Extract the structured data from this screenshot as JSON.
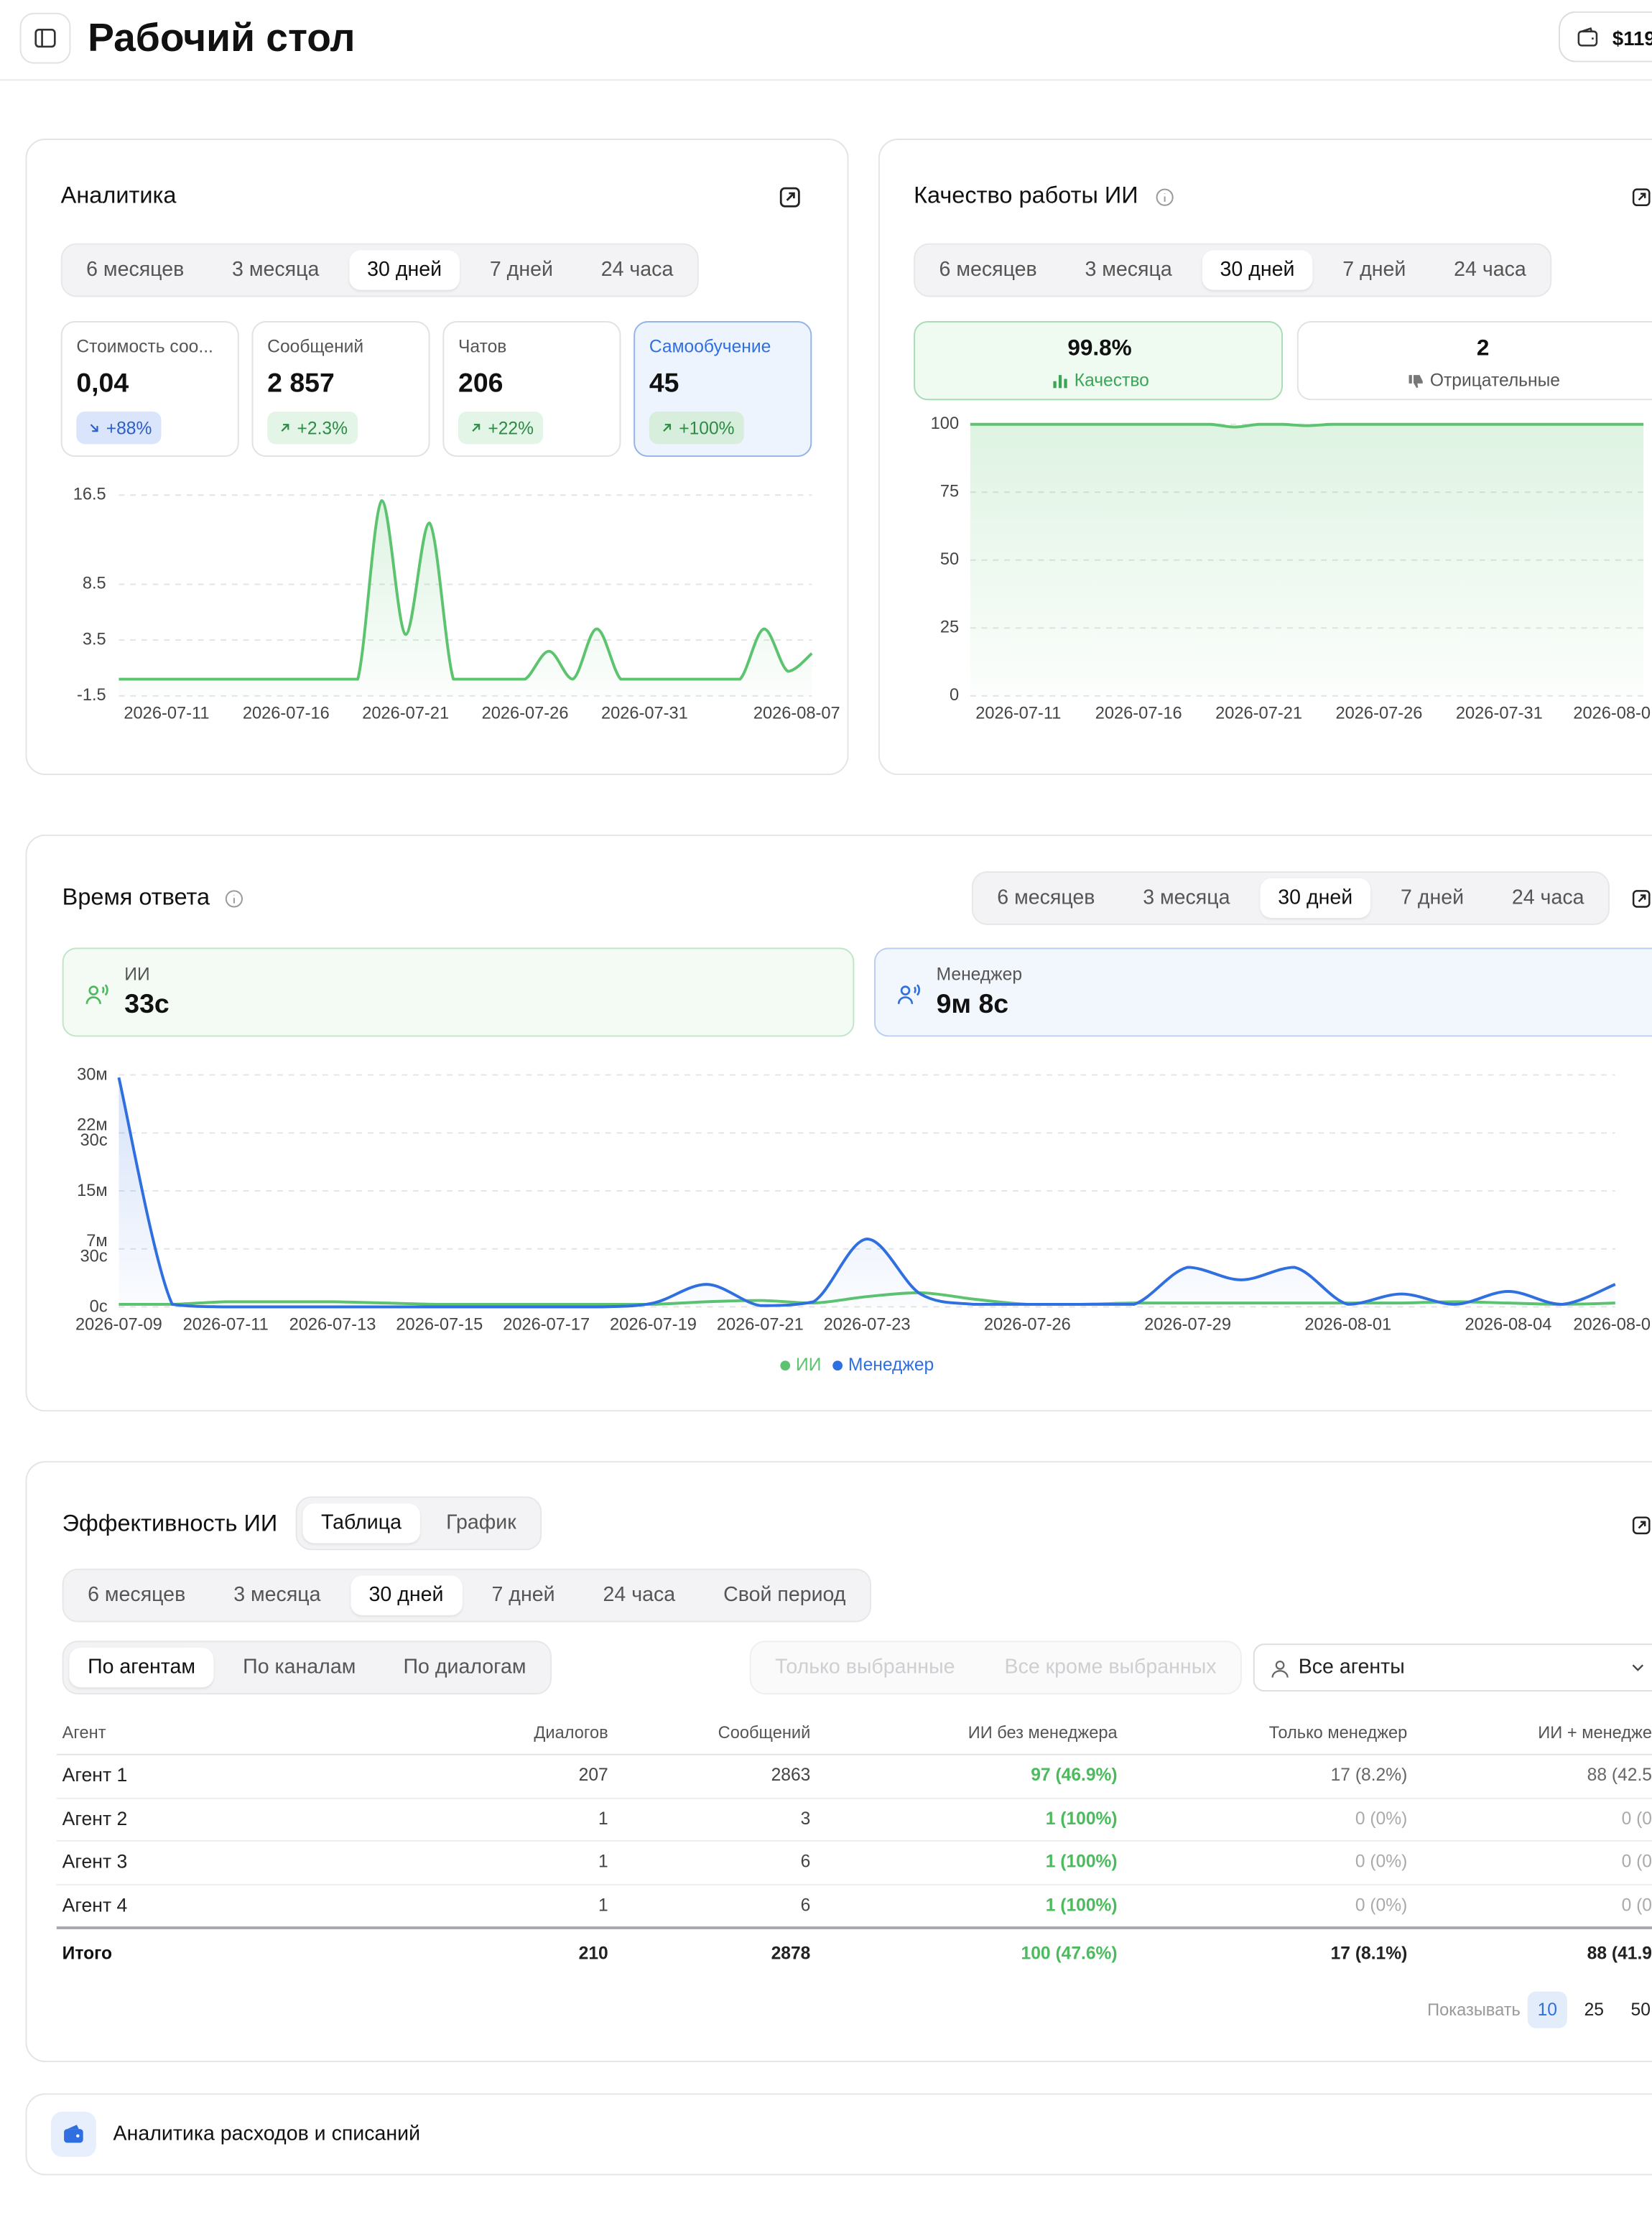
{
  "header": {
    "title": "Рабочий стол",
    "balance": "$119"
  },
  "analytics": {
    "title": "Аналитика",
    "periods": [
      "6 месяцев",
      "3 месяца",
      "30 дней",
      "7 дней",
      "24 часа"
    ],
    "active_period": 2,
    "selected_card": 3,
    "cards": [
      {
        "label": "Стоимость соо...",
        "value": "0,04",
        "change": "+88%",
        "trend": "down"
      },
      {
        "label": "Сообщений",
        "value": "2 857",
        "change": "+2.3%",
        "trend": "up"
      },
      {
        "label": "Чатов",
        "value": "206",
        "change": "+22%",
        "trend": "up"
      },
      {
        "label": "Самообучение",
        "value": "45",
        "change": "+100%",
        "trend": "up"
      }
    ],
    "chart": {
      "type": "line",
      "x": [
        "2026-07-09",
        "2026-07-10",
        "2026-07-11",
        "2026-07-12",
        "2026-07-13",
        "2026-07-14",
        "2026-07-15",
        "2026-07-16",
        "2026-07-17",
        "2026-07-18",
        "2026-07-19",
        "2026-07-20",
        "2026-07-21",
        "2026-07-22",
        "2026-07-23",
        "2026-07-24",
        "2026-07-25",
        "2026-07-26",
        "2026-07-27",
        "2026-07-28",
        "2026-07-29",
        "2026-07-30",
        "2026-07-31",
        "2026-08-01",
        "2026-08-02",
        "2026-08-03",
        "2026-08-04",
        "2026-08-05",
        "2026-08-06",
        "2026-08-07"
      ],
      "series": [
        {
          "color": "#5cc46f",
          "area": true,
          "values": [
            0,
            0,
            0,
            0,
            0,
            0,
            0,
            0,
            0,
            0,
            0,
            16,
            4,
            14,
            0,
            0,
            0,
            0,
            2.5,
            0,
            4.5,
            0,
            0,
            0,
            0,
            0,
            0,
            4.5,
            0.7,
            2.3
          ]
        }
      ],
      "xlim": [
        "2026-07-09",
        "2026-08-07"
      ],
      "xticks": [
        "2026-07-11",
        "2026-07-16",
        "2026-07-21",
        "2026-07-26",
        "2026-07-31",
        "2026-08-07"
      ],
      "ylim": [
        -1.5,
        16.5
      ],
      "yticks": [
        16.5,
        8.5,
        3.5,
        -1.5
      ],
      "grid": true
    }
  },
  "quality": {
    "title": "Качество работы ИИ",
    "periods": [
      "6 месяцев",
      "3 месяца",
      "30 дней",
      "7 дней",
      "24 часа"
    ],
    "active_period": 2,
    "cards": [
      {
        "value": "99.8%",
        "label": "Качество",
        "tone": "positive"
      },
      {
        "value": "2",
        "label": "Отрицательные",
        "tone": "neutral"
      }
    ],
    "chart": {
      "type": "line",
      "x": [
        "2026-07-09",
        "2026-07-10",
        "2026-07-11",
        "2026-07-12",
        "2026-07-13",
        "2026-07-14",
        "2026-07-15",
        "2026-07-16",
        "2026-07-17",
        "2026-07-18",
        "2026-07-19",
        "2026-07-20",
        "2026-07-21",
        "2026-07-22",
        "2026-07-23",
        "2026-07-24",
        "2026-07-25",
        "2026-07-26",
        "2026-07-27",
        "2026-07-28",
        "2026-07-29",
        "2026-07-30",
        "2026-07-31",
        "2026-08-01",
        "2026-08-02",
        "2026-08-03",
        "2026-08-04",
        "2026-08-05",
        "2026-08-06"
      ],
      "series": [
        {
          "color": "#5cc46f",
          "area": true,
          "values": [
            100,
            100,
            100,
            100,
            100,
            100,
            100,
            100,
            100,
            100,
            100,
            99,
            100,
            100,
            99.5,
            100,
            100,
            100,
            100,
            100,
            100,
            100,
            100,
            100,
            100,
            100,
            100,
            100,
            100
          ]
        }
      ],
      "xlim": [
        "2026-07-09",
        "2026-08-06"
      ],
      "xticks": [
        "2026-07-11",
        "2026-07-16",
        "2026-07-21",
        "2026-07-26",
        "2026-07-31",
        {
          "value": "2026-08-05",
          "label": "2026-08-0"
        }
      ],
      "ylim": [
        0,
        100
      ],
      "yticks": [
        0,
        25,
        50,
        75,
        100
      ],
      "grid": true
    }
  },
  "response": {
    "title": "Время ответа",
    "periods": [
      "6 месяцев",
      "3 месяца",
      "30 дней",
      "7 дней",
      "24 часа"
    ],
    "active_period": 2,
    "cards": [
      {
        "label": "ИИ",
        "value": "33с",
        "color": "green"
      },
      {
        "label": "Менеджер",
        "value": "9м 8с",
        "color": "blue"
      }
    ],
    "chart": {
      "type": "line",
      "x": [
        "2026-07-09",
        "2026-07-10",
        "2026-07-11",
        "2026-07-12",
        "2026-07-13",
        "2026-07-14",
        "2026-07-15",
        "2026-07-16",
        "2026-07-17",
        "2026-07-18",
        "2026-07-19",
        "2026-07-20",
        "2026-07-21",
        "2026-07-22",
        "2026-07-23",
        "2026-07-24",
        "2026-07-25",
        "2026-07-26",
        "2026-07-27",
        "2026-07-28",
        "2026-07-29",
        "2026-07-30",
        "2026-07-31",
        "2026-08-01",
        "2026-08-02",
        "2026-08-03",
        "2026-08-04",
        "2026-08-05",
        "2026-08-06"
      ],
      "series": [
        {
          "name": "ИИ",
          "color": "#5cc46f",
          "area": false,
          "values": [
            20,
            20,
            40,
            40,
            40,
            30,
            20,
            20,
            20,
            20,
            20,
            40,
            50,
            30,
            80,
            110,
            60,
            20,
            20,
            30,
            30,
            30,
            30,
            30,
            30,
            40,
            30,
            20,
            30
          ]
        },
        {
          "name": "Менеджер",
          "color": "#2f6fdf",
          "area": true,
          "values": [
            1780,
            20,
            0,
            0,
            0,
            0,
            0,
            0,
            0,
            0,
            30,
            175,
            10,
            40,
            527,
            100,
            20,
            20,
            20,
            20,
            307,
            210,
            307,
            20,
            100,
            20,
            120,
            20,
            175
          ]
        }
      ],
      "xlim": [
        "2026-07-09",
        "2026-08-06"
      ],
      "xticks": [
        "2026-07-09",
        "2026-07-11",
        "2026-07-13",
        "2026-07-15",
        "2026-07-17",
        "2026-07-19",
        "2026-07-21",
        "2026-07-23",
        "2026-07-26",
        "2026-07-29",
        "2026-08-01",
        "2026-08-04",
        {
          "value": "2026-08-06",
          "label": "2026-08-0"
        }
      ],
      "ylim": [
        0,
        1800
      ],
      "yticks": [
        {
          "value": 1800,
          "label": "30м"
        },
        {
          "value": 1350,
          "label": "22м 30с"
        },
        {
          "value": 900,
          "label": "15м"
        },
        {
          "value": 450,
          "label": "7м 30с"
        },
        {
          "value": 0,
          "label": "0с"
        }
      ],
      "grid": true,
      "legend": "bottom"
    }
  },
  "efficiency": {
    "title": "Эффективность ИИ",
    "views": [
      "Таблица",
      "График"
    ],
    "active_view": 0,
    "periods": [
      "6 месяцев",
      "3 месяца",
      "30 дней",
      "7 дней",
      "24 часа",
      "Свой период"
    ],
    "active_period": 2,
    "groupings": [
      "По агентам",
      "По каналам",
      "По диалогам"
    ],
    "active_grouping": 0,
    "filters": [
      "Только выбранные",
      "Все кроме выбранных"
    ],
    "filters_enabled": false,
    "agent_select": "Все агенты",
    "table": {
      "columns": [
        "Агент",
        "Диалогов",
        "Сообщений",
        "ИИ без менеджера",
        "Только менеджер",
        "ИИ + менедже"
      ],
      "rows": [
        [
          "Агент 1",
          207,
          2863,
          "97 (46.9%)",
          "17 (8.2%)",
          "88 (42.5"
        ],
        [
          "Агент 2",
          1,
          3,
          "1 (100%)",
          "0 (0%)",
          "0 (0"
        ],
        [
          "Агент 3",
          1,
          6,
          "1 (100%)",
          "0 (0%)",
          "0 (0"
        ],
        [
          "Агент 4",
          1,
          6,
          "1 (100%)",
          "0 (0%)",
          "0 (0"
        ]
      ],
      "total": [
        "Итого",
        210,
        2878,
        "100 (47.6%)",
        "17 (8.1%)",
        "88 (41.9"
      ]
    },
    "page_size": {
      "label": "Показывать",
      "options": [
        10,
        25,
        50
      ],
      "active": 0
    }
  },
  "expenses": {
    "title": "Аналитика расходов и списаний"
  }
}
